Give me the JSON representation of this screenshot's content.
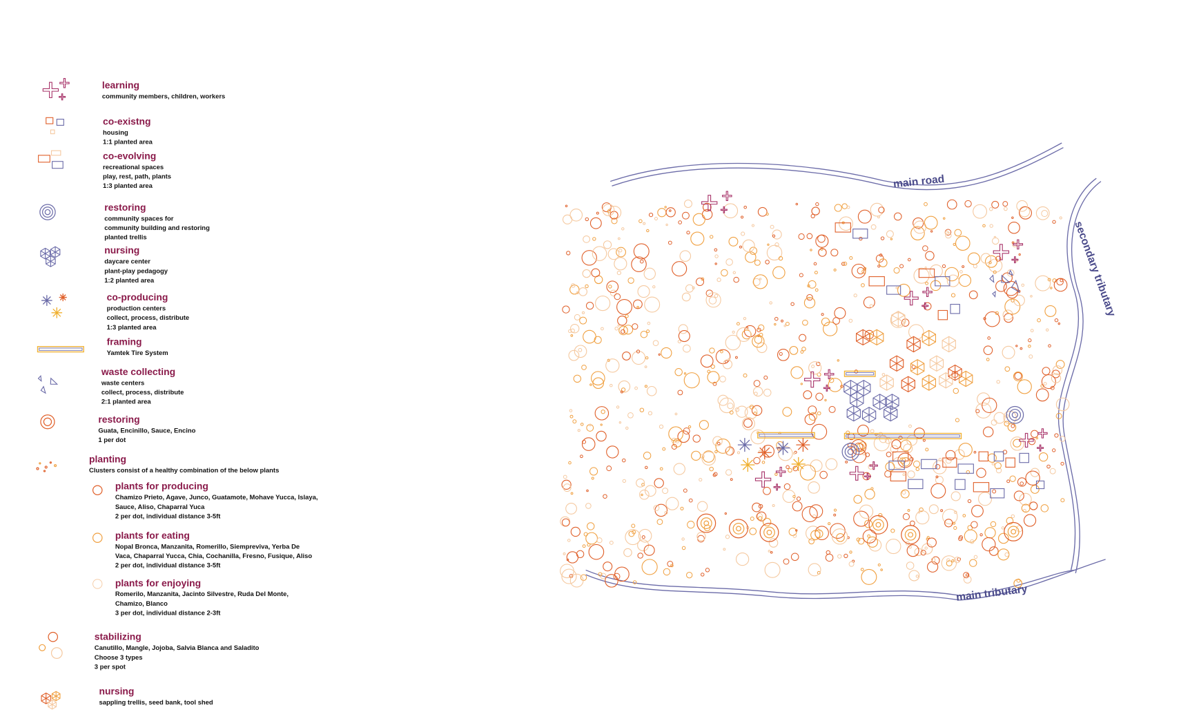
{
  "legend": [
    {
      "title": "learning",
      "lines": [
        "community members, children, workers"
      ]
    },
    {
      "title": "co-existng",
      "lines": [
        "housing",
        "1:1 planted area"
      ]
    },
    {
      "title": "co-evolving",
      "lines": [
        "recreational spaces",
        "play, rest, path, plants",
        "1:3 planted area"
      ]
    },
    {
      "title": "restoring",
      "lines": [
        "community spaces for",
        "community building and restoring",
        "planted trellis"
      ]
    },
    {
      "title": "nursing",
      "lines": [
        "daycare center",
        "plant-play pedagogy",
        "1:2 planted area"
      ]
    },
    {
      "title": "co-producing",
      "lines": [
        "production centers",
        "collect, process, distribute",
        "1:3 planted area"
      ]
    },
    {
      "title": "framing",
      "lines": [
        "Yamtek Tire System"
      ]
    },
    {
      "title": "waste collecting",
      "lines": [
        "waste centers",
        "collect, process, distribute",
        "2:1 planted area"
      ]
    },
    {
      "title": "restoring",
      "lines": [
        "Guata, Encinillo, Sauce, Encino",
        "1 per dot"
      ]
    },
    {
      "title": "planting",
      "lines": [
        "Clusters consist of a healthy combination of the below plants"
      ]
    },
    {
      "title": "plants for producing",
      "lines": [
        "Chamizo Prieto, Agave, Junco, Guatamote, Mohave Yucca, Islaya,",
        "Sauce, Aliso, Chaparral Yuca",
        "2 per dot, individual distance 3-5ft"
      ]
    },
    {
      "title": "plants for eating",
      "lines": [
        "Nopal Bronca, Manzanita, Romerillo, Siempreviva, Yerba De",
        "Vaca, Chaparral Yucca, Chia, Cochanilla, Fresno, Fusique, Aliso",
        "2 per dot, individual distance 3-5ft"
      ]
    },
    {
      "title": "plants for enjoying",
      "lines": [
        "Romerilo, Manzanita, Jacinto Silvestre, Ruda Del Monte,",
        "Chamizo, Blanco",
        "3 per dot, individual distance 2-3ft"
      ]
    },
    {
      "title": "stabilizing",
      "lines": [
        "Canutillo, Mangle, Jojoba, Salvia Blanca and Saladito",
        "Choose 3 types",
        "3 per spot"
      ]
    },
    {
      "title": "nursing",
      "lines": [
        "sappling trellis, seed bank, tool shed"
      ]
    }
  ],
  "map": {
    "main_road": "main road",
    "secondary_tributary": "secondary tributary",
    "main_tributary": "main tributary"
  }
}
